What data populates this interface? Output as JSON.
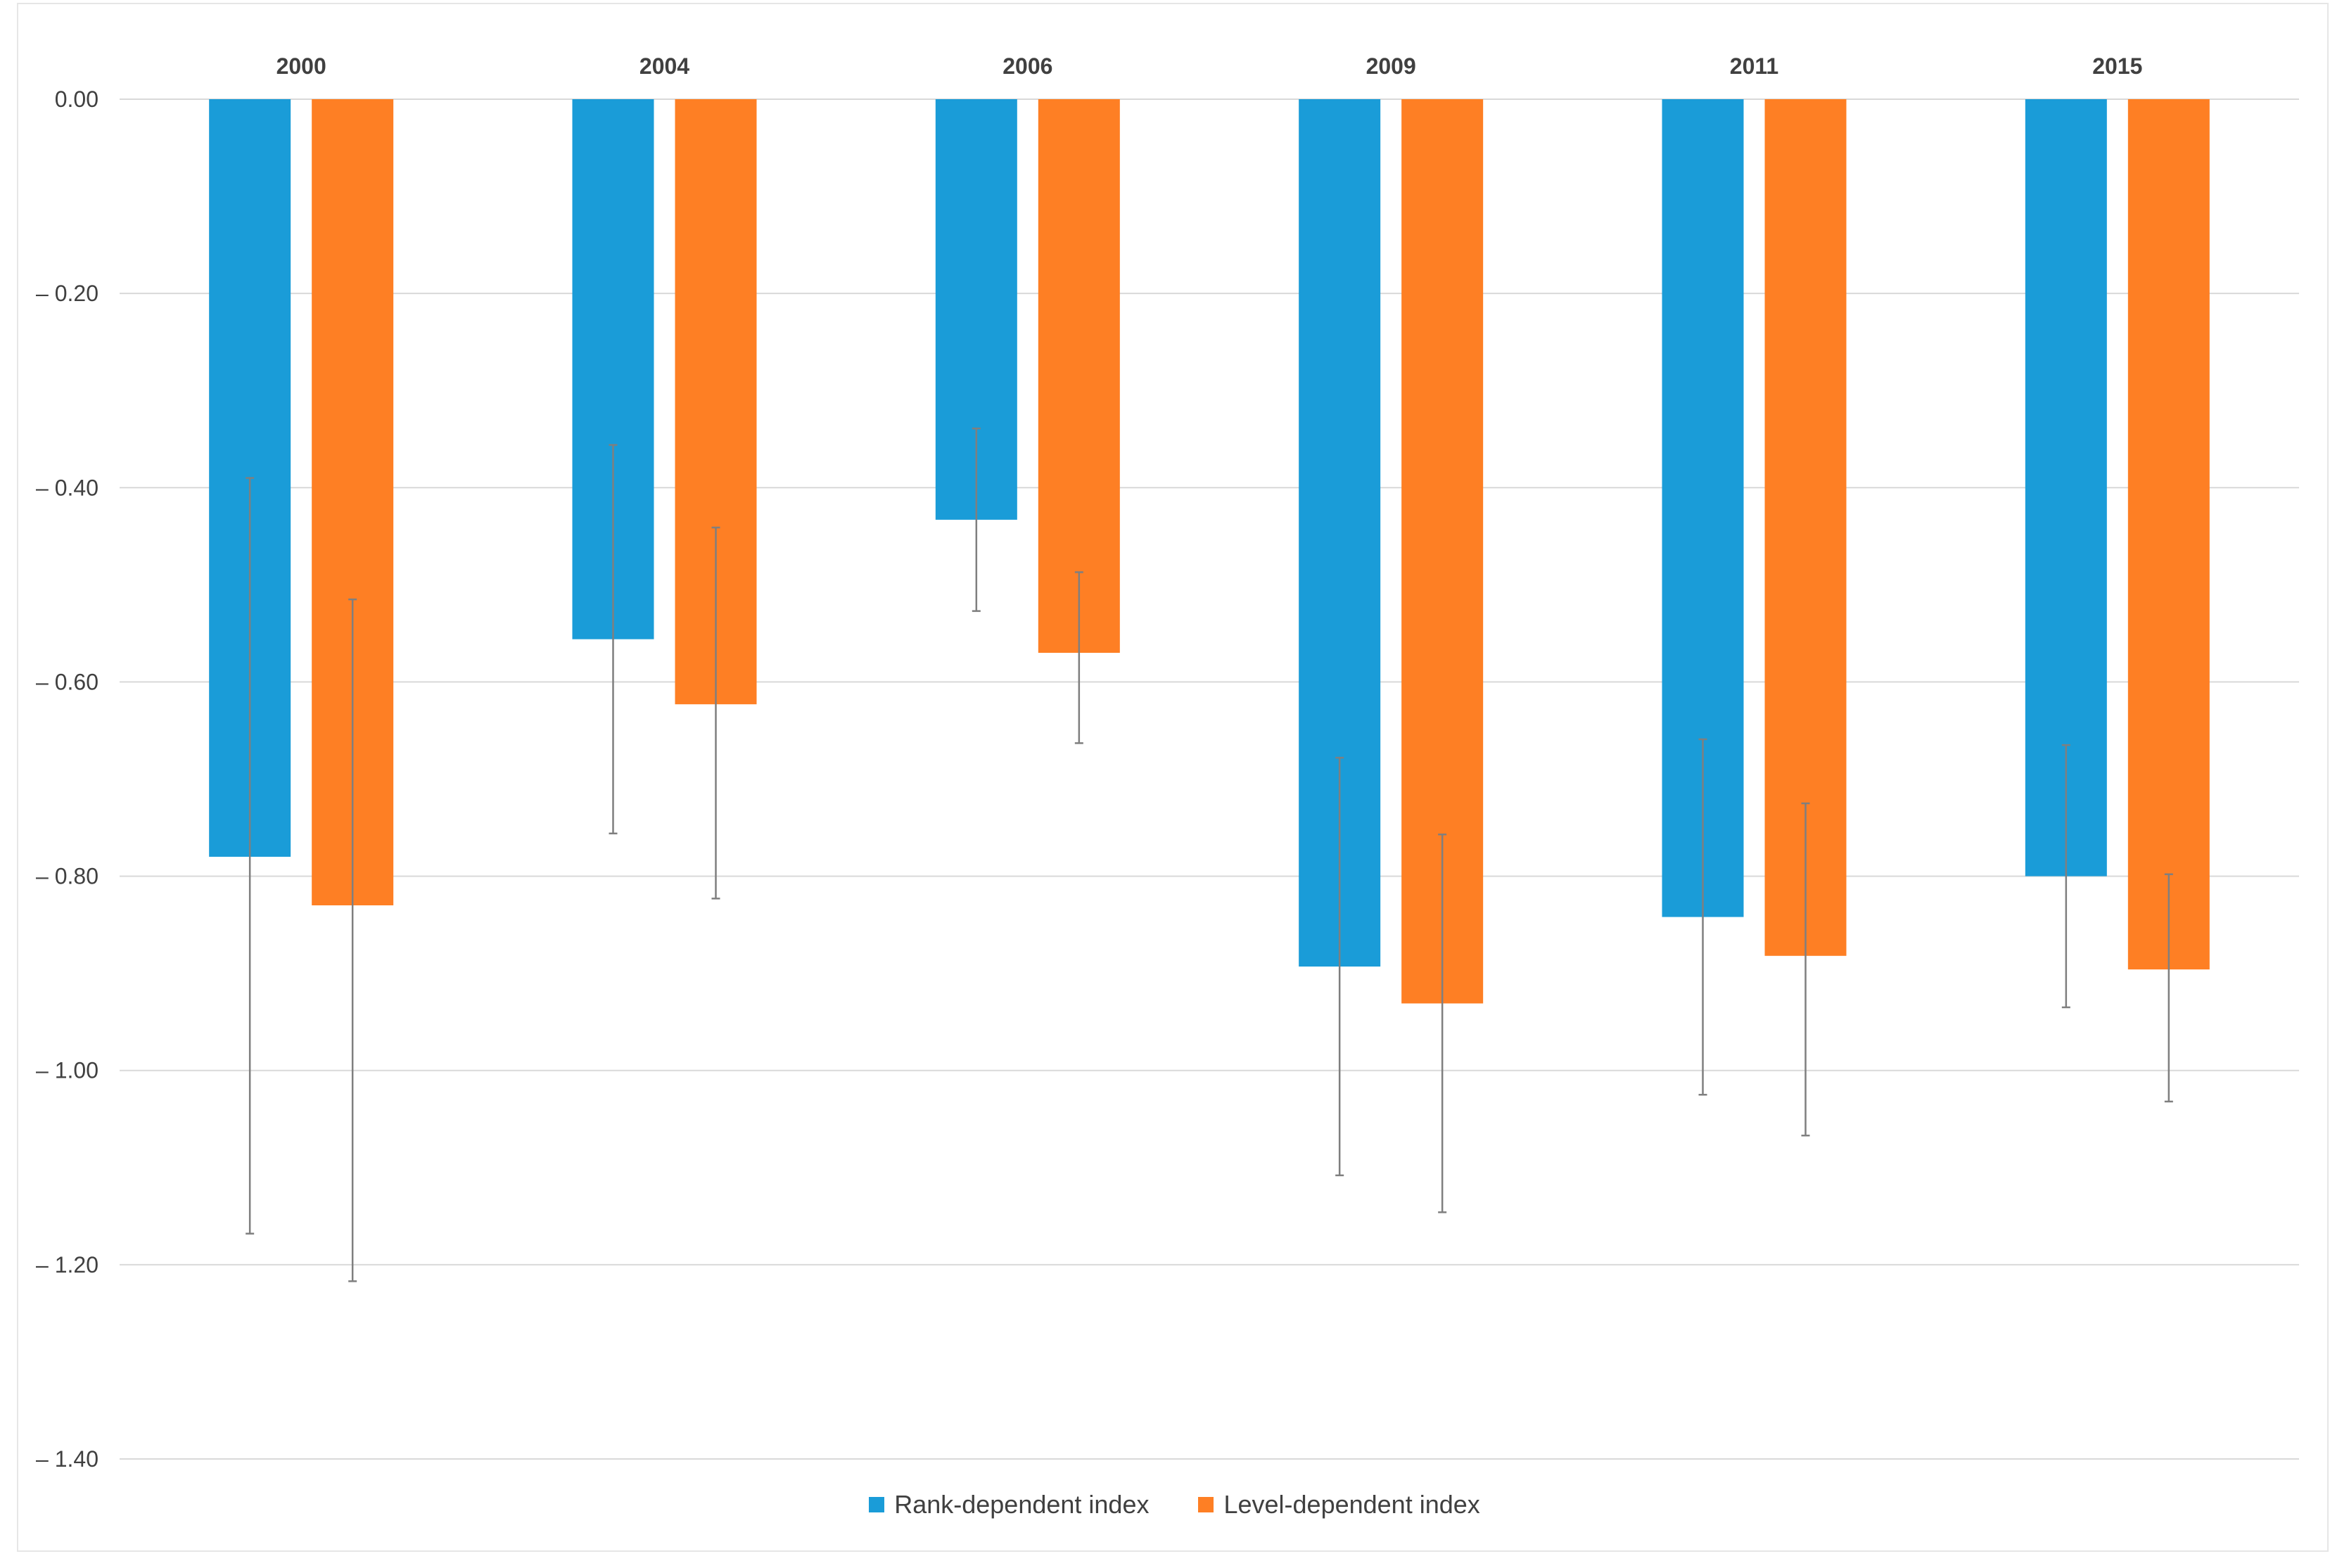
{
  "colors": {
    "rank": "#1a9cd8",
    "level": "#fe7f24",
    "grid": "#d9d9d9",
    "error_bar": "#7f7f7f",
    "text": "#404040"
  },
  "chart_data": {
    "type": "bar",
    "title": "",
    "xlabel": "",
    "ylabel": "",
    "categories": [
      "2000",
      "2004",
      "2006",
      "2009",
      "2011",
      "2015"
    ],
    "ylim": [
      -1.4,
      0
    ],
    "yticks": [
      0,
      -0.2,
      -0.4,
      -0.6,
      -0.8,
      -1.0,
      -1.2,
      -1.4
    ],
    "ytick_labels": [
      "0.00",
      "– 0.20",
      "– 0.40",
      "– 0.60",
      "– 0.80",
      "– 1.00",
      "– 1.20",
      "– 1.40"
    ],
    "legend_position": "bottom",
    "series": [
      {
        "name": "Rank-dependent index",
        "color": "#1a9cd8",
        "values": [
          -0.78,
          -0.556,
          -0.433,
          -0.893,
          -0.842,
          -0.8
        ],
        "error_low": [
          -1.168,
          -0.756,
          -0.527,
          -1.108,
          -1.025,
          -0.935
        ],
        "error_high": [
          -0.39,
          -0.356,
          -0.339,
          -0.678,
          -0.659,
          -0.665
        ]
      },
      {
        "name": "Level-dependent index",
        "color": "#fe7f24",
        "values": [
          -0.83,
          -0.623,
          -0.57,
          -0.931,
          -0.882,
          -0.896
        ],
        "error_low": [
          -1.217,
          -0.823,
          -0.663,
          -1.146,
          -1.067,
          -1.032
        ],
        "error_high": [
          -0.515,
          -0.441,
          -0.487,
          -0.757,
          -0.725,
          -0.798
        ]
      }
    ]
  }
}
